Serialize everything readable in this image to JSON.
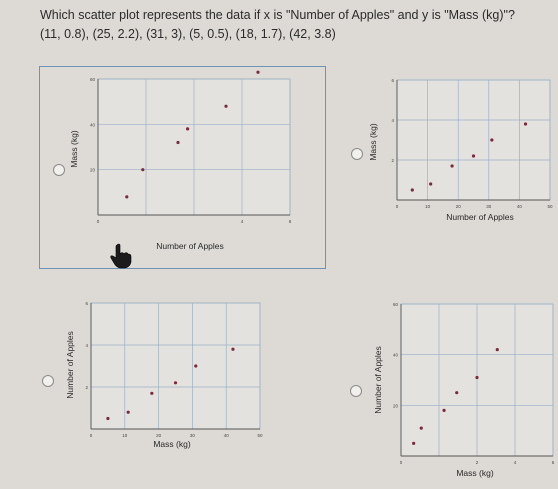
{
  "question": {
    "text": "Which scatter plot represents the data if x is \"Number of Apples\" and y is \"Mass (kg)\"?",
    "data": "(11, 0.8), (25, 2.2), (31, 3), (5, 0.5), (18, 1.7), (42, 3.8)"
  },
  "colors": {
    "point": "#7a2a3a",
    "grid": "#9bb0c6",
    "selected_border": "#6f93b5"
  },
  "options": [
    {
      "id": "A",
      "selected": true,
      "chart_data": {
        "type": "scatter",
        "xlabel": "Number of Apples",
        "ylabel": "Mass (kg)",
        "x_ticks": [
          "0",
          "",
          "",
          "4",
          "6"
        ],
        "y_ticks": [
          "",
          "20",
          "40",
          "60"
        ],
        "xlim": [
          0,
          6
        ],
        "ylim": [
          0,
          60
        ],
        "points": [
          [
            0.9,
            8
          ],
          [
            1.4,
            20
          ],
          [
            2.5,
            32
          ],
          [
            2.8,
            38
          ],
          [
            4.0,
            48
          ],
          [
            5.0,
            63
          ]
        ]
      }
    },
    {
      "id": "B",
      "selected": false,
      "chart_data": {
        "type": "scatter",
        "xlabel": "Number of Apples",
        "ylabel": "Mass (kg)",
        "x_ticks": [
          "0",
          "10",
          "20",
          "30",
          "40",
          "50"
        ],
        "y_ticks": [
          "",
          "2",
          "4",
          "6"
        ],
        "xlim": [
          0,
          50
        ],
        "ylim": [
          0,
          6
        ],
        "points": [
          [
            5,
            0.5
          ],
          [
            11,
            0.8
          ],
          [
            18,
            1.7
          ],
          [
            25,
            2.2
          ],
          [
            31,
            3
          ],
          [
            42,
            3.8
          ]
        ]
      }
    },
    {
      "id": "C",
      "selected": false,
      "chart_data": {
        "type": "scatter",
        "xlabel": "Mass (kg)",
        "ylabel": "Number of Apples",
        "x_ticks": [
          "0",
          "10",
          "20",
          "30",
          "40",
          "50"
        ],
        "y_ticks": [
          "",
          "2",
          "4",
          "6"
        ],
        "xlim": [
          0,
          50
        ],
        "ylim": [
          0,
          6
        ],
        "points": [
          [
            5,
            0.5
          ],
          [
            11,
            0.8
          ],
          [
            18,
            1.7
          ],
          [
            25,
            2.2
          ],
          [
            31,
            3
          ],
          [
            42,
            3.8
          ]
        ]
      }
    },
    {
      "id": "D",
      "selected": false,
      "chart_data": {
        "type": "scatter",
        "xlabel": "Mass (kg)",
        "ylabel": "Number of Apples",
        "x_ticks": [
          "0",
          "",
          "2",
          "4",
          "6"
        ],
        "y_ticks": [
          "",
          "20",
          "40",
          "60"
        ],
        "xlim": [
          0,
          6
        ],
        "ylim": [
          0,
          60
        ],
        "points": [
          [
            0.5,
            5
          ],
          [
            0.8,
            11
          ],
          [
            1.7,
            18
          ],
          [
            2.2,
            25
          ],
          [
            3,
            31
          ],
          [
            3.8,
            42
          ]
        ]
      }
    }
  ]
}
